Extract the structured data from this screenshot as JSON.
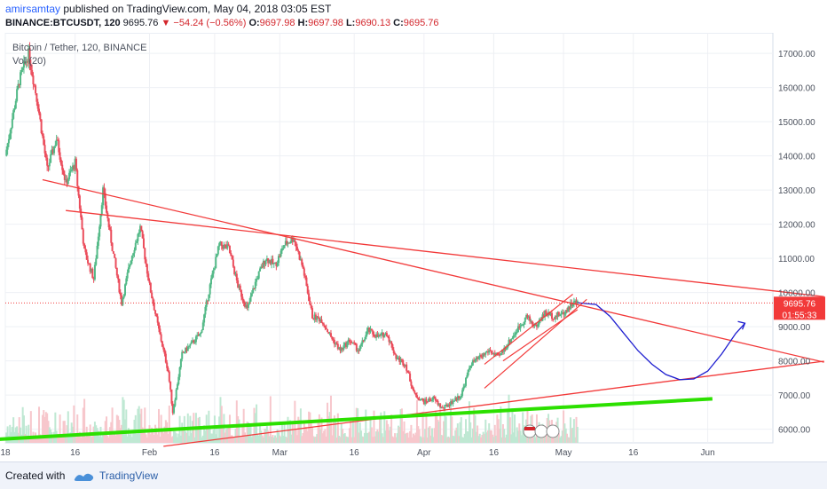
{
  "header": {
    "author": "amirsamtay",
    "published_text": "published on TradingView.com, May 04, 2018 03:05 EST"
  },
  "symbol_line": {
    "symbol": "BINANCE:BTCUSDT, 120",
    "last": "9695.76",
    "change": "−54.24 (−0.56%)",
    "o_label": "O:",
    "o": "9697.98",
    "h_label": "H:",
    "h": "9697.98",
    "l_label": "L:",
    "l": "9690.13",
    "c_label": "C:",
    "c": "9695.76"
  },
  "footer": {
    "created_with": "Created with",
    "brand": "TradingView"
  },
  "colors": {
    "up": "#53b987",
    "down": "#eb4d5c",
    "trendline": "#f23a3a",
    "support": "#2ce000",
    "projection": "#1e1ed0",
    "price_label_bg": "#f23a3a"
  },
  "chart_data": {
    "type": "candlestick",
    "title": "Bitcoin / Tether, 120, BINANCE",
    "indicator_label": "Vol (20)",
    "ylim": [
      5600,
      17600
    ],
    "y_ticks": [
      6000,
      7000,
      8000,
      9000,
      10000,
      11000,
      12000,
      13000,
      14000,
      15000,
      16000,
      17000
    ],
    "y_tick_labels": [
      "6000.00",
      "7000.00",
      "8000.00",
      "9000.00",
      "10000.00",
      "11000.00",
      "12000.00",
      "13000.00",
      "14000.00",
      "15000.00",
      "16000.00",
      "17000.00"
    ],
    "x_range_days": [
      0,
      165
    ],
    "x_ticks": [
      {
        "day": 0,
        "label": "18"
      },
      {
        "day": 15,
        "label": "16"
      },
      {
        "day": 31,
        "label": "Feb"
      },
      {
        "day": 45,
        "label": "16"
      },
      {
        "day": 59,
        "label": "Mar"
      },
      {
        "day": 75,
        "label": "16"
      },
      {
        "day": 90,
        "label": "Apr"
      },
      {
        "day": 105,
        "label": "16"
      },
      {
        "day": 120,
        "label": "May"
      },
      {
        "day": 135,
        "label": "16"
      },
      {
        "day": 151,
        "label": "Jun"
      }
    ],
    "last_price": 9695.76,
    "last_price_label": "9695.76",
    "countdown_label": "01:55:33",
    "price_path": [
      [
        0,
        14000
      ],
      [
        3,
        16200
      ],
      [
        5,
        17000
      ],
      [
        7,
        15500
      ],
      [
        9,
        13600
      ],
      [
        11,
        14500
      ],
      [
        13,
        13200
      ],
      [
        15,
        13800
      ],
      [
        17,
        11200
      ],
      [
        19,
        10400
      ],
      [
        21,
        13000
      ],
      [
        23,
        11300
      ],
      [
        25,
        9700
      ],
      [
        27,
        11000
      ],
      [
        29,
        11900
      ],
      [
        31,
        10200
      ],
      [
        33,
        8900
      ],
      [
        35,
        7700
      ],
      [
        36,
        6500
      ],
      [
        38,
        8200
      ],
      [
        40,
        8500
      ],
      [
        42,
        8800
      ],
      [
        44,
        10200
      ],
      [
        46,
        11400
      ],
      [
        48,
        11300
      ],
      [
        50,
        10200
      ],
      [
        52,
        9500
      ],
      [
        54,
        10400
      ],
      [
        56,
        11000
      ],
      [
        58,
        10800
      ],
      [
        60,
        11400
      ],
      [
        62,
        11600
      ],
      [
        64,
        10700
      ],
      [
        66,
        9300
      ],
      [
        68,
        9200
      ],
      [
        70,
        8700
      ],
      [
        72,
        8300
      ],
      [
        74,
        8600
      ],
      [
        76,
        8300
      ],
      [
        78,
        8900
      ],
      [
        80,
        8700
      ],
      [
        82,
        8800
      ],
      [
        84,
        8100
      ],
      [
        86,
        7900
      ],
      [
        88,
        7000
      ],
      [
        90,
        6800
      ],
      [
        92,
        6900
      ],
      [
        94,
        6600
      ],
      [
        96,
        6800
      ],
      [
        98,
        7000
      ],
      [
        100,
        7900
      ],
      [
        102,
        8100
      ],
      [
        104,
        8300
      ],
      [
        106,
        8100
      ],
      [
        108,
        8500
      ],
      [
        110,
        8900
      ],
      [
        112,
        9300
      ],
      [
        114,
        9000
      ],
      [
        116,
        9400
      ],
      [
        118,
        9300
      ],
      [
        120,
        9400
      ],
      [
        122,
        9700
      ],
      [
        123,
        9696
      ]
    ],
    "volume_scale_max": 1,
    "annotations": {
      "resistance_lines": [
        {
          "from": [
            8,
            13300
          ],
          "to": [
            176,
            7960
          ]
        },
        {
          "from": [
            13,
            12400
          ],
          "to": [
            176,
            9880
          ]
        }
      ],
      "support_line": {
        "from": [
          -2,
          5700
        ],
        "to": [
          152,
          6890
        ]
      },
      "rising_line": {
        "from": [
          34,
          5500
        ],
        "to": [
          176,
          7990
        ]
      },
      "channel": [
        {
          "from": [
            103,
            7900
          ],
          "to": [
            122,
            9950
          ]
        },
        {
          "from": [
            103,
            7200
          ],
          "to": [
            125,
            9800
          ]
        },
        {
          "from": [
            107,
            8000
          ],
          "to": [
            123,
            9500
          ]
        }
      ],
      "projection_curve": [
        [
          123,
          9700
        ],
        [
          127,
          9650
        ],
        [
          130,
          9300
        ],
        [
          133,
          8800
        ],
        [
          136,
          8300
        ],
        [
          139,
          7900
        ],
        [
          142,
          7600
        ],
        [
          145,
          7450
        ],
        [
          148,
          7470
        ],
        [
          151,
          7700
        ],
        [
          154,
          8200
        ],
        [
          157,
          8800
        ],
        [
          159,
          9100
        ]
      ]
    }
  }
}
